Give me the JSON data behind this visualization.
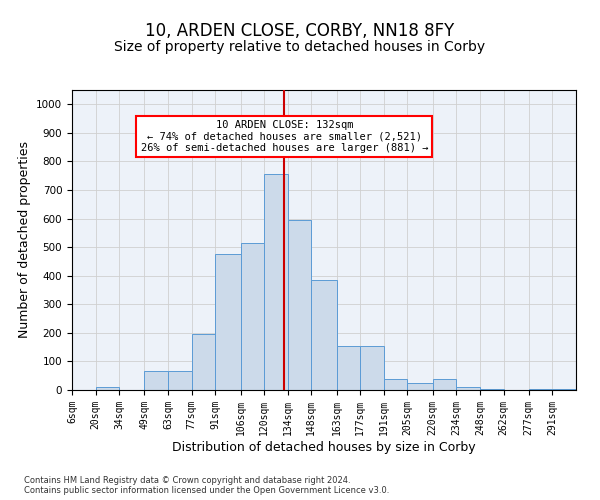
{
  "title": "10, ARDEN CLOSE, CORBY, NN18 8FY",
  "subtitle": "Size of property relative to detached houses in Corby",
  "xlabel": "Distribution of detached houses by size in Corby",
  "ylabel": "Number of detached properties",
  "footnote1": "Contains HM Land Registry data © Crown copyright and database right 2024.",
  "footnote2": "Contains public sector information licensed under the Open Government Licence v3.0.",
  "annotation_line1": "10 ARDEN CLOSE: 132sqm",
  "annotation_line2": "← 74% of detached houses are smaller (2,521)",
  "annotation_line3": "26% of semi-detached houses are larger (881) →",
  "bar_color": "#ccdaea",
  "bar_edge_color": "#5b9bd5",
  "vline_color": "#cc0000",
  "vline_x": 132,
  "categories": [
    "6sqm",
    "20sqm",
    "34sqm",
    "49sqm",
    "63sqm",
    "77sqm",
    "91sqm",
    "106sqm",
    "120sqm",
    "134sqm",
    "148sqm",
    "163sqm",
    "177sqm",
    "191sqm",
    "205sqm",
    "220sqm",
    "234sqm",
    "248sqm",
    "262sqm",
    "277sqm",
    "291sqm"
  ],
  "bin_edges": [
    6,
    20,
    34,
    49,
    63,
    77,
    91,
    106,
    120,
    134,
    148,
    163,
    177,
    191,
    205,
    220,
    234,
    248,
    262,
    277,
    291,
    305
  ],
  "values": [
    0,
    10,
    0,
    65,
    65,
    195,
    475,
    515,
    755,
    595,
    385,
    155,
    155,
    40,
    25,
    40,
    10,
    5,
    0,
    5,
    5
  ],
  "ylim": [
    0,
    1050
  ],
  "yticks": [
    0,
    100,
    200,
    300,
    400,
    500,
    600,
    700,
    800,
    900,
    1000
  ],
  "grid_color": "#d0d0d0",
  "background_color": "#edf2f9",
  "title_fontsize": 12,
  "subtitle_fontsize": 10,
  "tick_fontsize": 7,
  "label_fontsize": 9,
  "footnote_fontsize": 6
}
